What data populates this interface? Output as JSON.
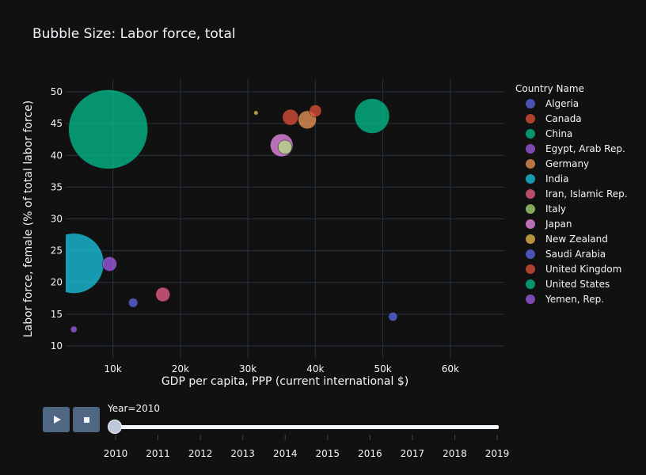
{
  "title": "Bubble Size: Labor force, total",
  "legend_title": "Country Name",
  "slider": {
    "current_label": "Year=2010",
    "years": [
      "2010",
      "2011",
      "2012",
      "2013",
      "2014",
      "2015",
      "2016",
      "2017",
      "2018",
      "2019"
    ],
    "selected_index": 0,
    "play_icon": "play-icon",
    "stop_icon": "stop-icon"
  },
  "chart_data": {
    "type": "scatter",
    "title": "Bubble Size: Labor force, total",
    "xlabel": "GDP per capita, PPP (current international $)",
    "ylabel": "Labor force, female (% of total labor force)",
    "xlim": [
      3000,
      68000
    ],
    "ylim": [
      8,
      52
    ],
    "x_ticks": [
      10000,
      20000,
      30000,
      40000,
      50000,
      60000
    ],
    "x_tick_labels": [
      "10k",
      "20k",
      "30k",
      "40k",
      "50k",
      "60k"
    ],
    "y_ticks": [
      10,
      15,
      20,
      25,
      30,
      35,
      40,
      45,
      50
    ],
    "legend_position": "right",
    "series": [
      {
        "name": "Algeria",
        "color": "#636efa",
        "points": [
          {
            "x": 13000,
            "y": 16.8,
            "size": 11.0
          }
        ]
      },
      {
        "name": "Canada",
        "color": "#EF553B",
        "points": [
          {
            "x": 40000,
            "y": 47.0,
            "size": 19.0
          }
        ]
      },
      {
        "name": "China",
        "color": "#00cc96",
        "points": [
          {
            "x": 9300,
            "y": 44.1,
            "size": 800.0
          }
        ]
      },
      {
        "name": "Egypt, Arab Rep.",
        "color": "#ab63fa",
        "points": [
          {
            "x": 9500,
            "y": 22.9,
            "size": 27.0
          }
        ]
      },
      {
        "name": "Germany",
        "color": "#FFA15A",
        "points": [
          {
            "x": 38800,
            "y": 45.6,
            "size": 42.0
          }
        ]
      },
      {
        "name": "India",
        "color": "#19d3f3",
        "points": [
          {
            "x": 4200,
            "y": 23.0,
            "size": 460.0
          }
        ]
      },
      {
        "name": "Iran, Islamic Rep.",
        "color": "#FF6692",
        "points": [
          {
            "x": 17400,
            "y": 18.1,
            "size": 26.0
          }
        ]
      },
      {
        "name": "Italy",
        "color": "#B6E880",
        "points": [
          {
            "x": 35500,
            "y": 41.3,
            "size": 25.0
          }
        ]
      },
      {
        "name": "Japan",
        "color": "#FF97FF",
        "points": [
          {
            "x": 35000,
            "y": 41.6,
            "size": 66.0
          }
        ]
      },
      {
        "name": "New Zealand",
        "color": "#FECB52",
        "points": [
          {
            "x": 31200,
            "y": 46.7,
            "size": 2.4
          }
        ]
      },
      {
        "name": "Saudi Arabia",
        "color": "#636efa",
        "points": [
          {
            "x": 51500,
            "y": 14.6,
            "size": 10.0
          }
        ]
      },
      {
        "name": "United Kingdom",
        "color": "#EF553B",
        "points": [
          {
            "x": 36300,
            "y": 46.0,
            "size": 32.0
          }
        ]
      },
      {
        "name": "United States",
        "color": "#00cc96",
        "points": [
          {
            "x": 48400,
            "y": 46.2,
            "size": 155.0
          }
        ]
      },
      {
        "name": "Yemen, Rep.",
        "color": "#ab63fa",
        "points": [
          {
            "x": 4200,
            "y": 12.6,
            "size": 5.5
          }
        ]
      }
    ]
  },
  "colors": {
    "background": "#111111",
    "grid": "#283442",
    "text": "#f2f5fa",
    "button": "#506784"
  }
}
